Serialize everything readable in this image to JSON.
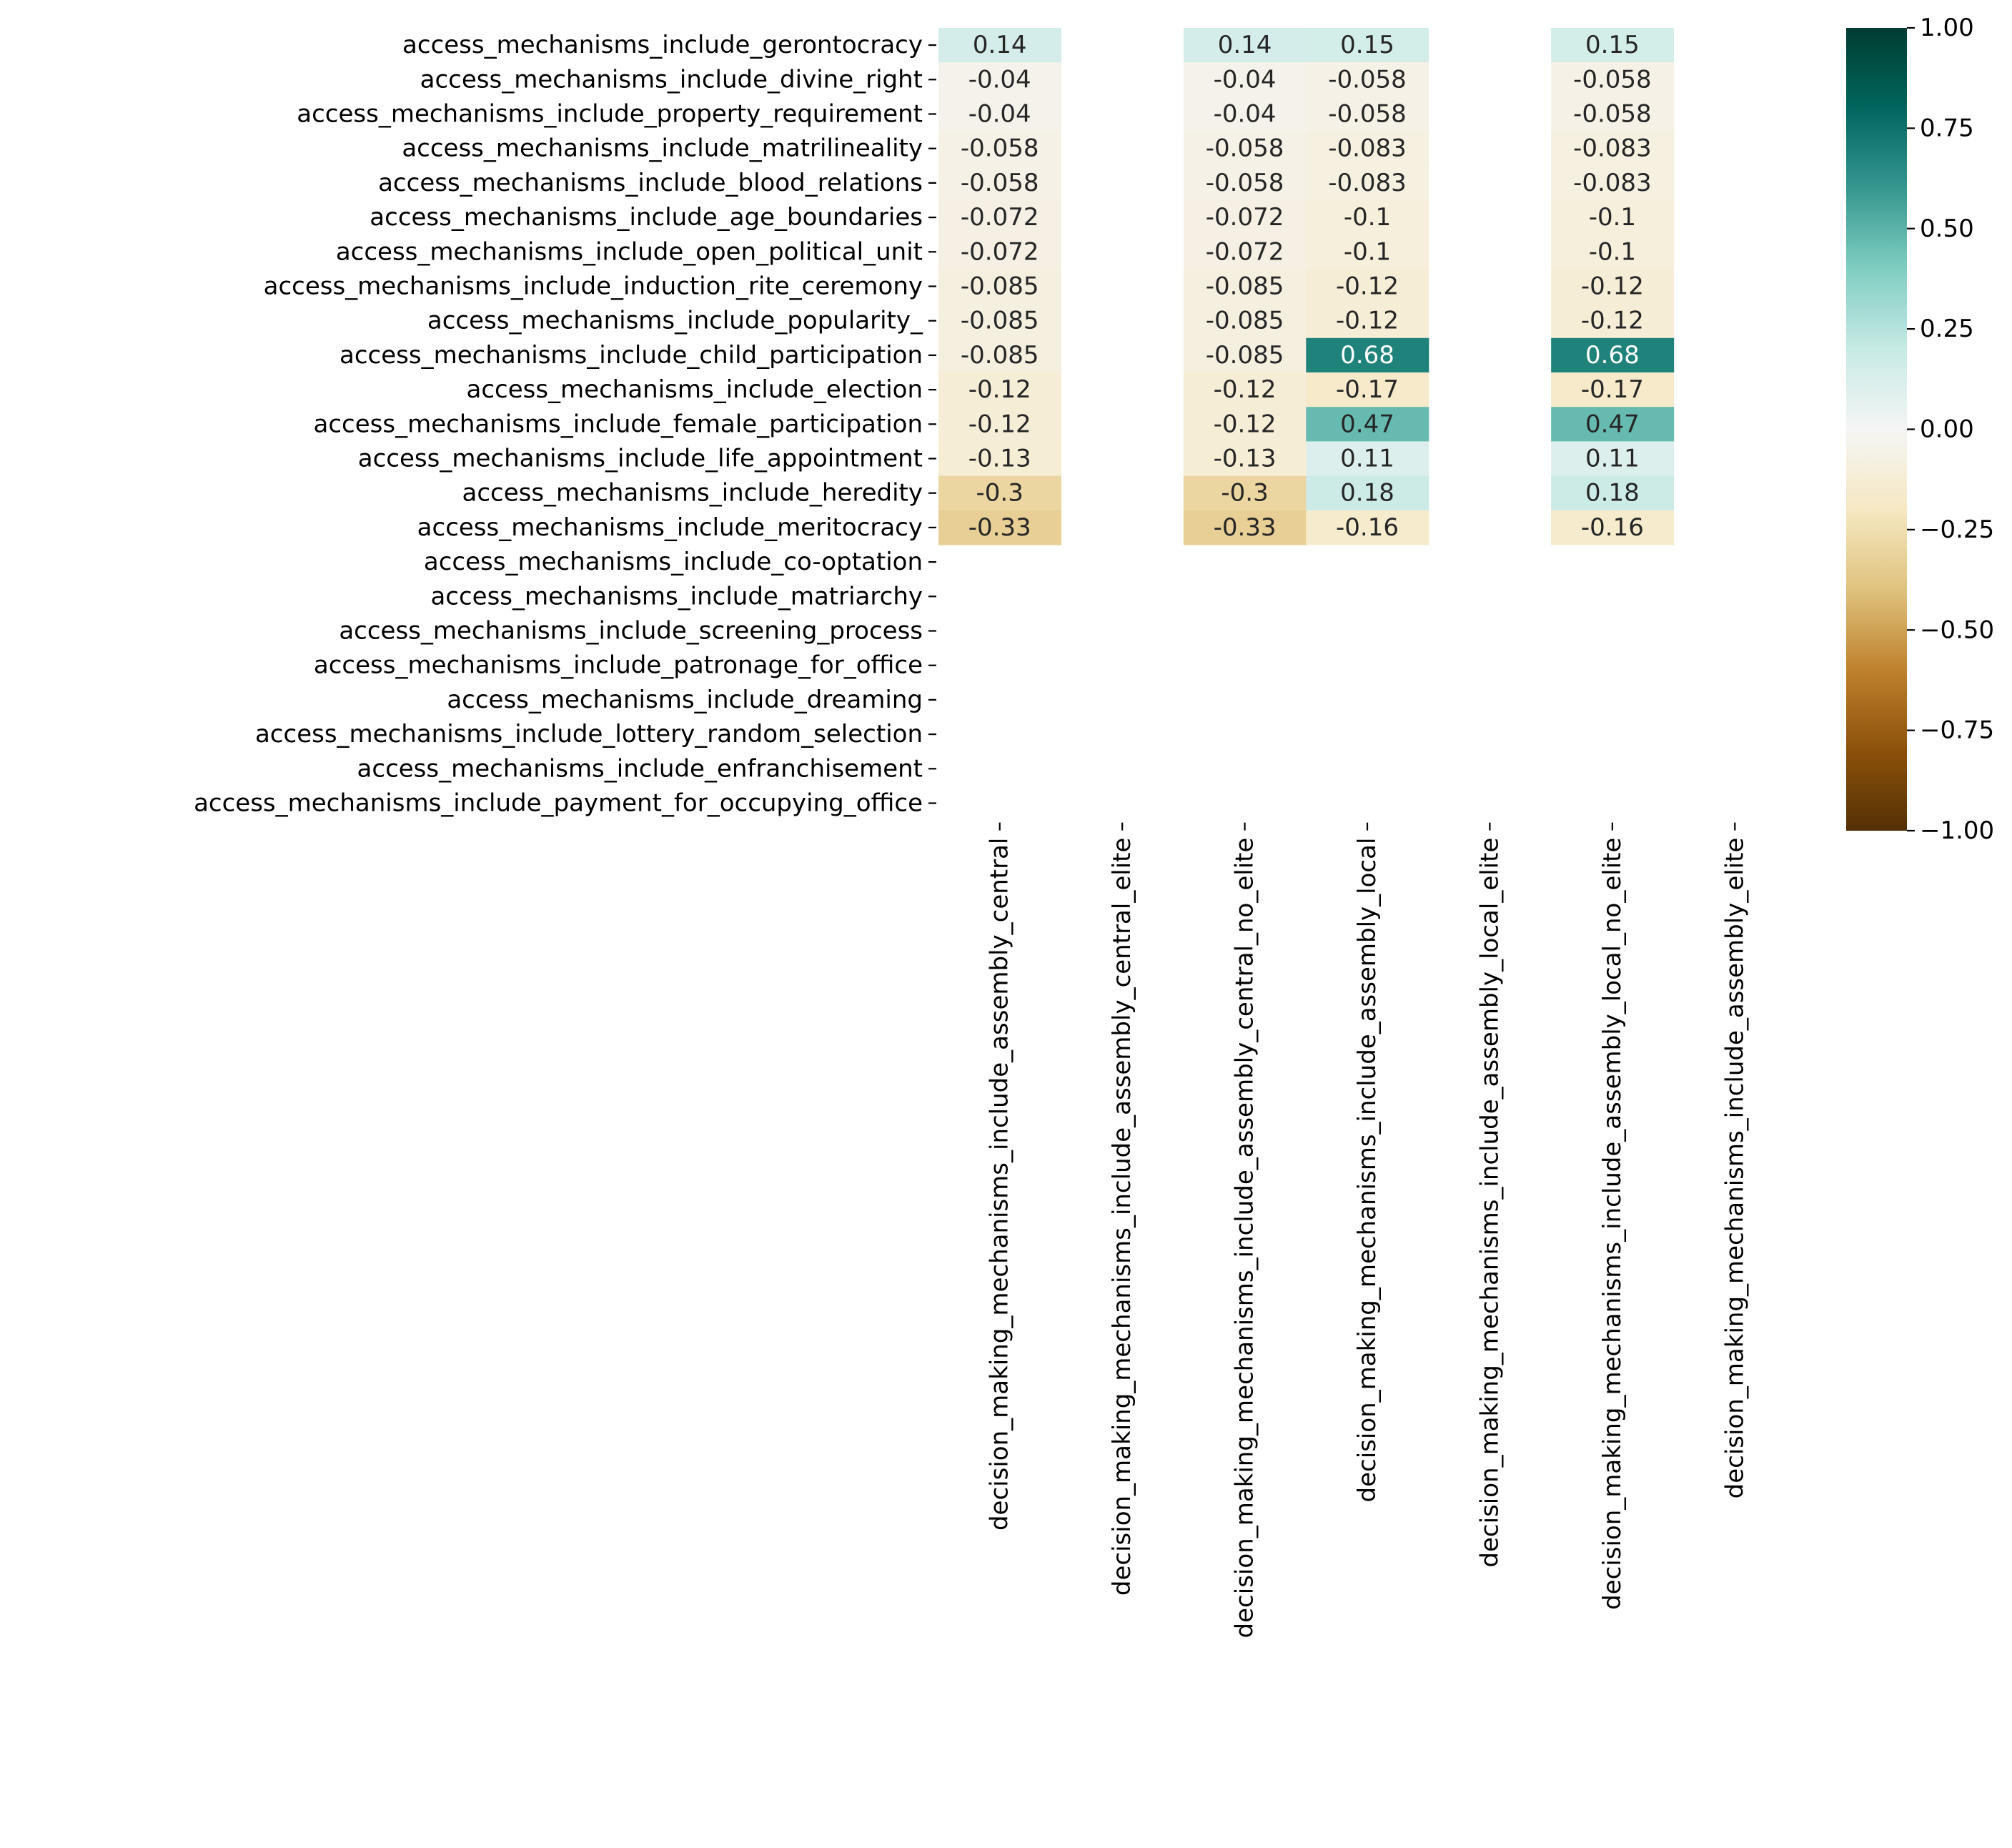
{
  "chart_data": {
    "type": "heatmap",
    "title": "",
    "xlabel": "",
    "ylabel": "",
    "colormap": "BrBG",
    "vmin": -1.0,
    "vmax": 1.0,
    "colorbar_ticks": [
      "1.00",
      "0.75",
      "0.50",
      "0.25",
      "0.00",
      "−0.25",
      "−0.50",
      "−0.75",
      "−1.00"
    ],
    "colorbar_tick_values": [
      1.0,
      0.75,
      0.5,
      0.25,
      0.0,
      -0.25,
      -0.5,
      -0.75,
      -1.0
    ],
    "rows": [
      "access_mechanisms_include_gerontocracy",
      "access_mechanisms_include_divine_right",
      "access_mechanisms_include_property_requirement",
      "access_mechanisms_include_matrilineality",
      "access_mechanisms_include_blood_relations",
      "access_mechanisms_include_age_boundaries",
      "access_mechanisms_include_open_political_unit",
      "access_mechanisms_include_induction_rite_ceremony",
      "access_mechanisms_include_popularity_",
      "access_mechanisms_include_child_participation",
      "access_mechanisms_include_election",
      "access_mechanisms_include_female_participation",
      "access_mechanisms_include_life_appointment",
      "access_mechanisms_include_heredity",
      "access_mechanisms_include_meritocracy",
      "access_mechanisms_include_co-optation",
      "access_mechanisms_include_matriarchy",
      "access_mechanisms_include_screening_process",
      "access_mechanisms_include_patronage_for_office",
      "access_mechanisms_include_dreaming",
      "access_mechanisms_include_lottery_random_selection",
      "access_mechanisms_include_enfranchisement",
      "access_mechanisms_include_payment_for_occupying_office"
    ],
    "columns": [
      "decision_making_mechanisms_include_assembly_central",
      "decision_making_mechanisms_include_assembly_central_elite",
      "decision_making_mechanisms_include_assembly_central_no_elite",
      "decision_making_mechanisms_include_assembly_local",
      "decision_making_mechanisms_include_assembly_local_elite",
      "decision_making_mechanisms_include_assembly_local_no_elite",
      "decision_making_mechanisms_include_assembly_elite"
    ],
    "values": [
      [
        0.14,
        null,
        0.14,
        0.15,
        null,
        0.15,
        null
      ],
      [
        -0.04,
        null,
        -0.04,
        -0.058,
        null,
        -0.058,
        null
      ],
      [
        -0.04,
        null,
        -0.04,
        -0.058,
        null,
        -0.058,
        null
      ],
      [
        -0.058,
        null,
        -0.058,
        -0.083,
        null,
        -0.083,
        null
      ],
      [
        -0.058,
        null,
        -0.058,
        -0.083,
        null,
        -0.083,
        null
      ],
      [
        -0.072,
        null,
        -0.072,
        -0.1,
        null,
        -0.1,
        null
      ],
      [
        -0.072,
        null,
        -0.072,
        -0.1,
        null,
        -0.1,
        null
      ],
      [
        -0.085,
        null,
        -0.085,
        -0.12,
        null,
        -0.12,
        null
      ],
      [
        -0.085,
        null,
        -0.085,
        -0.12,
        null,
        -0.12,
        null
      ],
      [
        -0.085,
        null,
        -0.085,
        0.68,
        null,
        0.68,
        null
      ],
      [
        -0.12,
        null,
        -0.12,
        -0.17,
        null,
        -0.17,
        null
      ],
      [
        -0.12,
        null,
        -0.12,
        0.47,
        null,
        0.47,
        null
      ],
      [
        -0.13,
        null,
        -0.13,
        0.11,
        null,
        0.11,
        null
      ],
      [
        -0.3,
        null,
        -0.3,
        0.18,
        null,
        0.18,
        null
      ],
      [
        -0.33,
        null,
        -0.33,
        -0.16,
        null,
        -0.16,
        null
      ],
      [
        null,
        null,
        null,
        null,
        null,
        null,
        null
      ],
      [
        null,
        null,
        null,
        null,
        null,
        null,
        null
      ],
      [
        null,
        null,
        null,
        null,
        null,
        null,
        null
      ],
      [
        null,
        null,
        null,
        null,
        null,
        null,
        null
      ],
      [
        null,
        null,
        null,
        null,
        null,
        null,
        null
      ],
      [
        null,
        null,
        null,
        null,
        null,
        null,
        null
      ],
      [
        null,
        null,
        null,
        null,
        null,
        null,
        null
      ],
      [
        null,
        null,
        null,
        null,
        null,
        null,
        null
      ]
    ],
    "annotations": [
      [
        "0.14",
        "",
        "0.14",
        "0.15",
        "",
        "0.15",
        ""
      ],
      [
        "-0.04",
        "",
        "-0.04",
        "-0.058",
        "",
        "-0.058",
        ""
      ],
      [
        "-0.04",
        "",
        "-0.04",
        "-0.058",
        "",
        "-0.058",
        ""
      ],
      [
        "-0.058",
        "",
        "-0.058",
        "-0.083",
        "",
        "-0.083",
        ""
      ],
      [
        "-0.058",
        "",
        "-0.058",
        "-0.083",
        "",
        "-0.083",
        ""
      ],
      [
        "-0.072",
        "",
        "-0.072",
        "-0.1",
        "",
        "-0.1",
        ""
      ],
      [
        "-0.072",
        "",
        "-0.072",
        "-0.1",
        "",
        "-0.1",
        ""
      ],
      [
        "-0.085",
        "",
        "-0.085",
        "-0.12",
        "",
        "-0.12",
        ""
      ],
      [
        "-0.085",
        "",
        "-0.085",
        "-0.12",
        "",
        "-0.12",
        ""
      ],
      [
        "-0.085",
        "",
        "-0.085",
        "0.68",
        "",
        "0.68",
        ""
      ],
      [
        "-0.12",
        "",
        "-0.12",
        "-0.17",
        "",
        "-0.17",
        ""
      ],
      [
        "-0.12",
        "",
        "-0.12",
        "0.47",
        "",
        "0.47",
        ""
      ],
      [
        "-0.13",
        "",
        "-0.13",
        "0.11",
        "",
        "0.11",
        ""
      ],
      [
        "-0.3",
        "",
        "-0.3",
        "0.18",
        "",
        "0.18",
        ""
      ],
      [
        "-0.33",
        "",
        "-0.33",
        "-0.16",
        "",
        "-0.16",
        ""
      ],
      [
        "",
        "",
        "",
        "",
        "",
        "",
        ""
      ],
      [
        "",
        "",
        "",
        "",
        "",
        "",
        ""
      ],
      [
        "",
        "",
        "",
        "",
        "",
        "",
        ""
      ],
      [
        "",
        "",
        "",
        "",
        "",
        "",
        ""
      ],
      [
        "",
        "",
        "",
        "",
        "",
        "",
        ""
      ],
      [
        "",
        "",
        "",
        "",
        "",
        "",
        ""
      ],
      [
        "",
        "",
        "",
        "",
        "",
        "",
        ""
      ],
      [
        "",
        "",
        "",
        "",
        "",
        "",
        ""
      ]
    ]
  }
}
